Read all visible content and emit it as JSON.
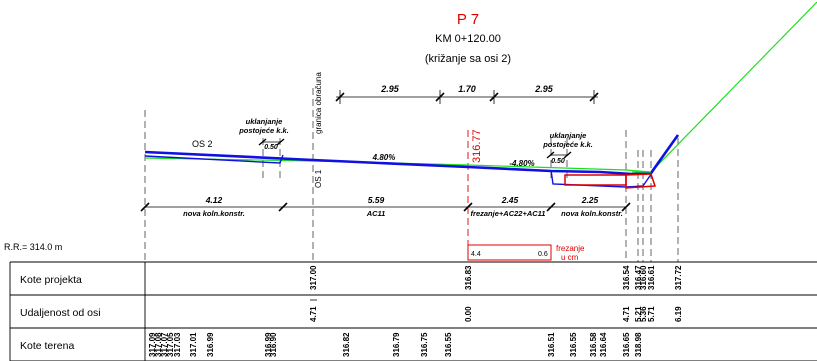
{
  "header": {
    "title": "P 7",
    "station": "KM 0+120.00",
    "note": "(križanje sa osi 2)"
  },
  "dims_top": [
    "2.95",
    "1.70",
    "2.95"
  ],
  "labels": {
    "granica": "granica obračuna",
    "os2": "OS 2",
    "os1": "OS 1",
    "uklanjanje_left": [
      "uklanjanje",
      "postojeće k.k."
    ],
    "uklanjanje_right": [
      "uklanjanje",
      "postojeće k.k."
    ],
    "w_left": "0.50",
    "w_right": "0.50",
    "slope_left": "4.80%",
    "slope_right": "-4.80%",
    "elev": "316.77",
    "rr": "R.R.= 314.0 m",
    "frez_box_left": "4.4",
    "frez_box_right": "0.6",
    "frez_note": [
      "frezanje",
      "u cm"
    ]
  },
  "dims_bottom": [
    {
      "value": "4.12",
      "desc": "nova koln.konstr."
    },
    {
      "value": "5.59",
      "desc": "AC11"
    },
    {
      "value": "2.45",
      "desc": "frezanje+AC22+AC11"
    },
    {
      "value": "2.25",
      "desc": "nova koln.konstr."
    }
  ],
  "table": {
    "rows": [
      "Kote projekta",
      "Udaljenost od osi",
      "Kote terena"
    ],
    "kote_projekta": [
      "317.00",
      "316.83",
      "316.54",
      "316.47",
      "316.60",
      "316.61",
      "317.72"
    ],
    "udaljenost": [
      "4.71",
      "0.00",
      "4.71",
      "5.21",
      "5.36",
      "5.71",
      "6.19"
    ],
    "kote_terena": [
      "317.09",
      "317.08",
      "317.07",
      "317.05",
      "317.03",
      "317.01",
      "316.99",
      "316.99",
      "316.90",
      "316.82",
      "316.79",
      "316.75",
      "316.55",
      "316.51",
      "316.55",
      "316.58",
      "316.64",
      "316.65",
      "318.98"
    ]
  },
  "colors": {
    "blue": "#1010e0",
    "green": "#19e019",
    "red": "#e00000"
  }
}
